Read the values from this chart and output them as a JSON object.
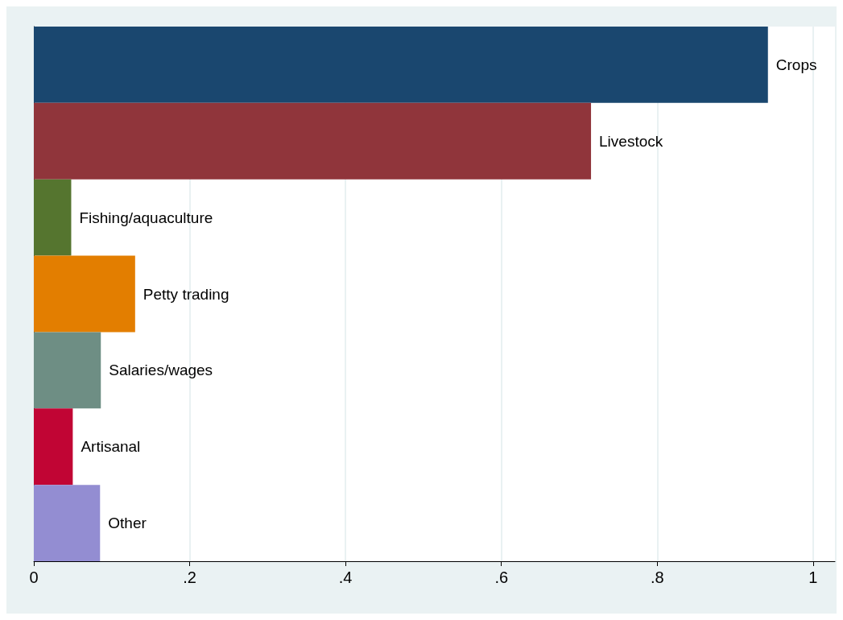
{
  "chart_data": {
    "type": "bar",
    "orientation": "horizontal",
    "categories": [
      "Crops",
      "Livestock",
      "Fishing/aquaculture",
      "Petty trading",
      "Salaries/wages",
      "Artisanal",
      "Other"
    ],
    "values": [
      0.942,
      0.715,
      0.048,
      0.13,
      0.086,
      0.05,
      0.085
    ],
    "colors": [
      "#1a476f",
      "#90353b",
      "#55752f",
      "#e37e00",
      "#6e8e84",
      "#c10534",
      "#938dd2"
    ],
    "xlim": [
      0,
      1.028
    ],
    "xticks": [
      0,
      {
        "value": 0.2,
        "label": ".2"
      },
      {
        "value": 0.4,
        "label": ".4"
      },
      {
        "value": 0.6,
        "label": ".6"
      },
      {
        "value": 0.8,
        "label": ".8"
      },
      1
    ],
    "grid": "x"
  }
}
